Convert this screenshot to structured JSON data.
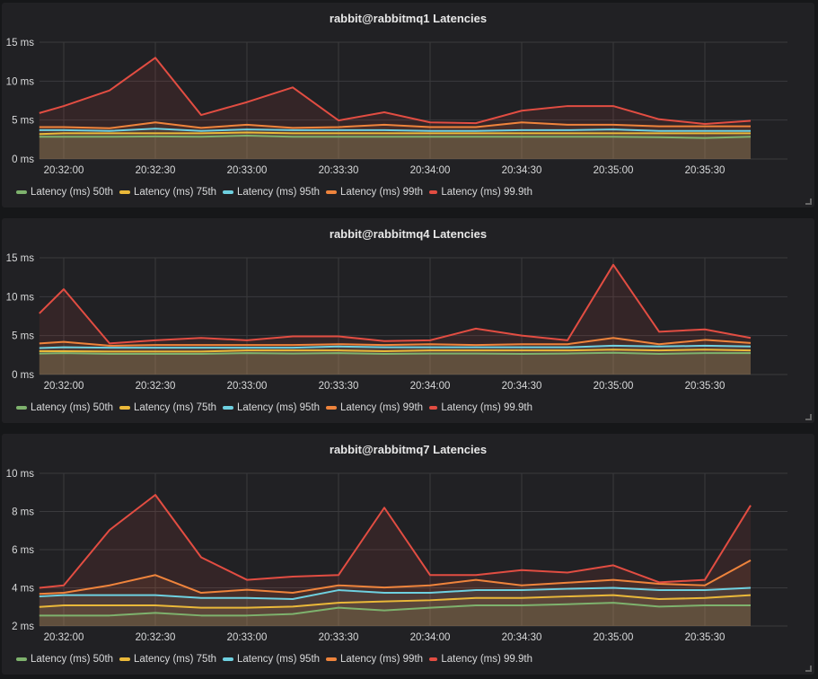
{
  "colors": {
    "50th": "#7eb26d",
    "75th": "#eab839",
    "95th": "#6ed0e0",
    "99th": "#ef843c",
    "99.9th": "#e24d42"
  },
  "legend": [
    "Latency (ms) 50th",
    "Latency (ms) 75th",
    "Latency (ms) 95th",
    "Latency (ms) 99th",
    "Latency (ms) 99.9th"
  ],
  "chart_data": [
    {
      "type": "line",
      "title": "rabbit@rabbitmq1 Latencies",
      "ylim": [
        0,
        15
      ],
      "yticks": [
        "0 ms",
        "5 ms",
        "10 ms",
        "15 ms"
      ],
      "ytick_values": [
        0,
        5,
        10,
        15
      ],
      "xticks": [
        "20:32:00",
        "20:32:30",
        "20:33:00",
        "20:33:30",
        "20:34:00",
        "20:34:30",
        "20:35:00",
        "20:35:30"
      ],
      "grid": true,
      "fill": true,
      "legend_placement": "bottom",
      "x": [
        "20:31:52",
        "20:32:00",
        "20:32:15",
        "20:32:30",
        "20:32:45",
        "20:33:00",
        "20:33:15",
        "20:33:30",
        "20:33:45",
        "20:34:00",
        "20:34:15",
        "20:34:30",
        "20:34:45",
        "20:35:00",
        "20:35:15",
        "20:35:30",
        "20:35:45"
      ],
      "series": [
        {
          "name": "Latency (ms) 50th",
          "values": [
            2.85,
            2.85,
            2.85,
            2.9,
            2.85,
            3.0,
            2.85,
            2.85,
            2.85,
            2.85,
            2.85,
            2.85,
            2.85,
            2.85,
            2.8,
            2.7,
            2.85
          ]
        },
        {
          "name": "Latency (ms) 75th",
          "values": [
            3.2,
            3.3,
            3.3,
            3.3,
            3.3,
            3.4,
            3.3,
            3.3,
            3.3,
            3.3,
            3.3,
            3.3,
            3.3,
            3.3,
            3.3,
            3.3,
            3.3
          ]
        },
        {
          "name": "Latency (ms) 95th",
          "values": [
            3.7,
            3.7,
            3.6,
            3.9,
            3.6,
            3.8,
            3.7,
            3.7,
            3.7,
            3.6,
            3.6,
            3.7,
            3.7,
            3.8,
            3.6,
            3.6,
            3.6
          ]
        },
        {
          "name": "Latency (ms) 99th",
          "values": [
            4.1,
            4.1,
            3.95,
            4.7,
            4.0,
            4.4,
            4.0,
            4.1,
            4.4,
            4.1,
            4.1,
            4.7,
            4.4,
            4.4,
            4.2,
            4.2,
            4.2
          ]
        },
        {
          "name": "Latency (ms) 99.9th",
          "values": [
            5.9,
            6.8,
            8.8,
            13.0,
            5.65,
            7.3,
            9.2,
            4.95,
            6.0,
            4.7,
            4.6,
            6.2,
            6.8,
            6.8,
            5.1,
            4.5,
            4.9
          ]
        }
      ]
    },
    {
      "type": "line",
      "title": "rabbit@rabbitmq4 Latencies",
      "ylim": [
        0,
        15
      ],
      "yticks": [
        "0 ms",
        "5 ms",
        "10 ms",
        "15 ms"
      ],
      "ytick_values": [
        0,
        5,
        10,
        15
      ],
      "xticks": [
        "20:32:00",
        "20:32:30",
        "20:33:00",
        "20:33:30",
        "20:34:00",
        "20:34:30",
        "20:35:00",
        "20:35:30"
      ],
      "grid": true,
      "fill": true,
      "legend_placement": "bottom",
      "x": [
        "20:31:52",
        "20:32:00",
        "20:32:15",
        "20:32:30",
        "20:32:45",
        "20:33:00",
        "20:33:15",
        "20:33:30",
        "20:33:45",
        "20:34:00",
        "20:34:15",
        "20:34:30",
        "20:34:45",
        "20:35:00",
        "20:35:15",
        "20:35:30",
        "20:35:45"
      ],
      "series": [
        {
          "name": "Latency (ms) 50th",
          "values": [
            2.7,
            2.75,
            2.65,
            2.65,
            2.65,
            2.75,
            2.7,
            2.75,
            2.65,
            2.7,
            2.7,
            2.65,
            2.7,
            2.8,
            2.65,
            2.75,
            2.75
          ]
        },
        {
          "name": "Latency (ms) 75th",
          "values": [
            3.0,
            3.0,
            2.95,
            2.95,
            2.95,
            3.1,
            3.1,
            3.1,
            3.0,
            3.1,
            3.1,
            3.1,
            3.1,
            3.2,
            3.1,
            3.2,
            3.1
          ]
        },
        {
          "name": "Latency (ms) 95th",
          "values": [
            3.4,
            3.5,
            3.45,
            3.45,
            3.45,
            3.45,
            3.45,
            3.6,
            3.5,
            3.5,
            3.5,
            3.5,
            3.5,
            3.7,
            3.6,
            3.7,
            3.6
          ]
        },
        {
          "name": "Latency (ms) 99th",
          "values": [
            4.0,
            4.2,
            3.7,
            3.8,
            3.8,
            3.8,
            3.8,
            3.9,
            3.8,
            3.9,
            3.8,
            3.9,
            3.9,
            4.7,
            3.9,
            4.45,
            4.05
          ]
        },
        {
          "name": "Latency (ms) 99.9th",
          "values": [
            7.85,
            10.96,
            4.0,
            4.4,
            4.7,
            4.4,
            4.9,
            4.9,
            4.3,
            4.4,
            5.9,
            5.0,
            4.4,
            14.1,
            5.5,
            5.8,
            4.7
          ]
        }
      ]
    },
    {
      "type": "line",
      "title": "rabbit@rabbitmq7 Latencies",
      "ylim": [
        2,
        10
      ],
      "yticks": [
        "2 ms",
        "4 ms",
        "6 ms",
        "8 ms",
        "10 ms"
      ],
      "ytick_values": [
        2,
        4,
        6,
        8,
        10
      ],
      "xticks": [
        "20:32:00",
        "20:32:30",
        "20:33:00",
        "20:33:30",
        "20:34:00",
        "20:34:30",
        "20:35:00",
        "20:35:30"
      ],
      "grid": true,
      "fill": true,
      "legend_placement": "bottom",
      "x": [
        "20:31:52",
        "20:32:00",
        "20:32:15",
        "20:32:30",
        "20:32:45",
        "20:33:00",
        "20:33:15",
        "20:33:30",
        "20:33:45",
        "20:34:00",
        "20:34:15",
        "20:34:30",
        "20:34:45",
        "20:35:00",
        "20:35:15",
        "20:35:30",
        "20:35:45"
      ],
      "series": [
        {
          "name": "Latency (ms) 50th",
          "values": [
            2.55,
            2.55,
            2.55,
            2.69,
            2.55,
            2.55,
            2.63,
            2.96,
            2.82,
            2.96,
            3.08,
            3.08,
            3.14,
            3.22,
            3.02,
            3.08,
            3.08
          ]
        },
        {
          "name": "Latency (ms) 75th",
          "values": [
            3.0,
            3.08,
            3.08,
            3.08,
            2.96,
            2.96,
            3.02,
            3.22,
            3.29,
            3.35,
            3.47,
            3.47,
            3.55,
            3.62,
            3.41,
            3.47,
            3.62
          ]
        },
        {
          "name": "Latency (ms) 95th",
          "values": [
            3.55,
            3.62,
            3.62,
            3.62,
            3.47,
            3.47,
            3.41,
            3.88,
            3.74,
            3.74,
            3.88,
            3.88,
            3.95,
            4.0,
            3.88,
            3.88,
            4.0
          ]
        },
        {
          "name": "Latency (ms) 99th",
          "values": [
            3.68,
            3.74,
            4.13,
            4.67,
            3.74,
            3.9,
            3.74,
            4.13,
            4.02,
            4.13,
            4.42,
            4.13,
            4.27,
            4.42,
            4.21,
            4.13,
            5.44
          ]
        },
        {
          "name": "Latency (ms) 99.9th",
          "values": [
            4.0,
            4.13,
            7.03,
            8.87,
            5.6,
            4.42,
            4.59,
            4.67,
            8.2,
            4.67,
            4.67,
            4.93,
            4.8,
            5.18,
            4.29,
            4.42,
            8.32
          ]
        }
      ]
    }
  ]
}
